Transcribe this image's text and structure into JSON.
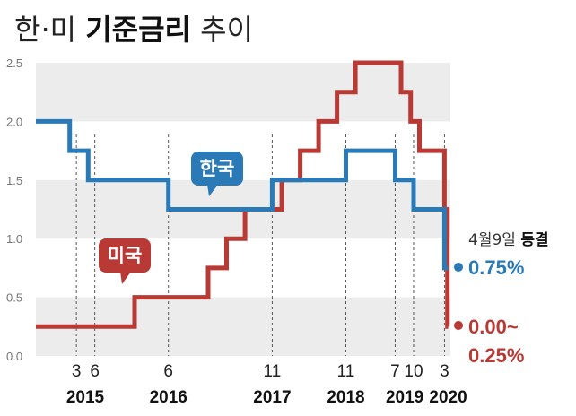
{
  "title": {
    "part1": "한·미 ",
    "part2": "기준금리",
    "part3": " 추이"
  },
  "colors": {
    "korea": "#2a7ab7",
    "us": "#b93a34",
    "band": "#ececec",
    "text": "#222222"
  },
  "annotation": {
    "date": "4월9일 ",
    "status": "동결"
  },
  "end_labels": {
    "korea": "0.75%",
    "us_line1": "0.00~",
    "us_line2": "0.25%"
  },
  "chart_data": {
    "type": "line",
    "step": true,
    "ylim": [
      0,
      2.5
    ],
    "yticks": [
      "0.0",
      "0.5",
      "1.0",
      "1.5",
      "2.0",
      "2.5"
    ],
    "x_range": [
      2014.62,
      2020.25
    ],
    "month_ticks": [
      {
        "x": 2015.17,
        "label": "3"
      },
      {
        "x": 2015.42,
        "label": "6"
      },
      {
        "x": 2016.42,
        "label": "6"
      },
      {
        "x": 2017.83,
        "label": "11"
      },
      {
        "x": 2018.83,
        "label": "11"
      },
      {
        "x": 2019.5,
        "label": "7"
      },
      {
        "x": 2019.75,
        "label": "10"
      },
      {
        "x": 2020.17,
        "label": "3"
      }
    ],
    "year_labels": [
      {
        "x": 2015.29,
        "label": "2015"
      },
      {
        "x": 2016.42,
        "label": "2016"
      },
      {
        "x": 2017.83,
        "label": "2017"
      },
      {
        "x": 2018.83,
        "label": "2018"
      },
      {
        "x": 2019.63,
        "label": "2019"
      },
      {
        "x": 2020.22,
        "label": "2020"
      }
    ],
    "series": [
      {
        "name": "한국",
        "color": "#2a7ab7",
        "points": [
          [
            2014.62,
            2.0
          ],
          [
            2015.08,
            2.0
          ],
          [
            2015.08,
            1.75
          ],
          [
            2015.33,
            1.75
          ],
          [
            2015.33,
            1.5
          ],
          [
            2016.42,
            1.5
          ],
          [
            2016.42,
            1.25
          ],
          [
            2017.83,
            1.25
          ],
          [
            2017.83,
            1.5
          ],
          [
            2018.83,
            1.5
          ],
          [
            2018.83,
            1.75
          ],
          [
            2019.5,
            1.75
          ],
          [
            2019.5,
            1.5
          ],
          [
            2019.75,
            1.5
          ],
          [
            2019.75,
            1.25
          ],
          [
            2020.17,
            1.25
          ],
          [
            2020.17,
            0.75
          ],
          [
            2020.22,
            0.75
          ]
        ]
      },
      {
        "name": "미국",
        "color": "#b93a34",
        "points": [
          [
            2014.62,
            0.25
          ],
          [
            2015.96,
            0.25
          ],
          [
            2015.96,
            0.5
          ],
          [
            2016.96,
            0.5
          ],
          [
            2016.96,
            0.75
          ],
          [
            2017.21,
            0.75
          ],
          [
            2017.21,
            1.0
          ],
          [
            2017.46,
            1.0
          ],
          [
            2017.46,
            1.25
          ],
          [
            2017.96,
            1.25
          ],
          [
            2017.96,
            1.5
          ],
          [
            2018.21,
            1.5
          ],
          [
            2018.21,
            1.75
          ],
          [
            2018.46,
            1.75
          ],
          [
            2018.46,
            2.0
          ],
          [
            2018.71,
            2.0
          ],
          [
            2018.71,
            2.25
          ],
          [
            2018.96,
            2.25
          ],
          [
            2018.96,
            2.5
          ],
          [
            2019.58,
            2.5
          ],
          [
            2019.58,
            2.25
          ],
          [
            2019.71,
            2.25
          ],
          [
            2019.71,
            2.0
          ],
          [
            2019.83,
            2.0
          ],
          [
            2019.83,
            1.75
          ],
          [
            2020.17,
            1.75
          ],
          [
            2020.17,
            1.25
          ],
          [
            2020.21,
            1.25
          ],
          [
            2020.21,
            0.25
          ],
          [
            2020.22,
            0.25
          ]
        ]
      }
    ]
  }
}
